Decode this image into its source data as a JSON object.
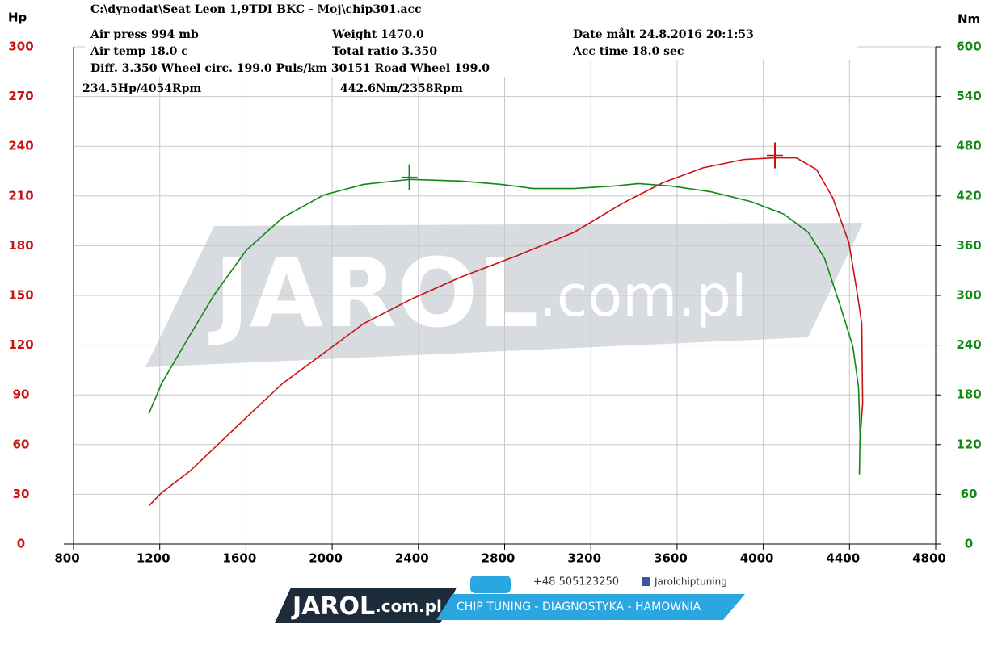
{
  "chart_data": {
    "type": "line",
    "title": "C:\\dynodat\\Seat Leon 1,9TDI BKC - Moj\\chip301.acc",
    "info_rows": [
      [
        "Air press  994 mb",
        "Weight  1470.0",
        "Date målt 24.8.2016 20:1:53"
      ],
      [
        "Air temp  18.0 c",
        "Total ratio 3.350",
        "Acc time  18.0 sec"
      ],
      [
        "Diff.    3.350  Wheel circ. 199.0  Puls/km  30151  Road Wheel 199.0"
      ]
    ],
    "ylabel": "Hp",
    "y2label": "Nm",
    "xlim": [
      800,
      4800
    ],
    "xticks": [
      800,
      1200,
      1600,
      2000,
      2400,
      2800,
      3200,
      3600,
      4000,
      4400,
      4800
    ],
    "ylim": [
      0,
      300
    ],
    "yticks": [
      0,
      30,
      60,
      90,
      120,
      150,
      180,
      210,
      240,
      270,
      300
    ],
    "y2lim": [
      0,
      600
    ],
    "y2ticks": [
      0,
      60,
      120,
      180,
      240,
      300,
      360,
      420,
      480,
      540,
      600
    ],
    "grid": true,
    "series": [
      {
        "color": "#cc1111",
        "axis": "y",
        "x": [
          1149,
          1209,
          1340,
          1453,
          1603,
          1771,
          1959,
          2146,
          2371,
          2596,
          2858,
          3121,
          3346,
          3534,
          3721,
          3909,
          4052,
          4153,
          4247,
          4322,
          4397,
          4434,
          4457,
          4461,
          4453
        ],
        "values": [
          22.9,
          31,
          44,
          58,
          76.5,
          97,
          115,
          133,
          148,
          161,
          174,
          188,
          205.5,
          218,
          227,
          232,
          233,
          233,
          226,
          209,
          182,
          153,
          133,
          85,
          70
        ],
        "peak": {
          "x": 4054,
          "y": 234.5,
          "label": "234.5Hp/4054Rpm"
        }
      },
      {
        "color": "#118811",
        "axis": "y2",
        "x": [
          1149,
          1209,
          1340,
          1453,
          1603,
          1771,
          1959,
          2146,
          2360,
          2596,
          2783,
          2933,
          3121,
          3309,
          3421,
          3571,
          3759,
          3946,
          4096,
          4209,
          4284,
          4359,
          4416,
          4442,
          4449,
          4446
        ],
        "values": [
          157,
          194,
          252,
          301,
          355,
          394,
          421,
          434,
          440,
          438,
          434,
          429,
          429,
          432,
          435,
          432,
          425,
          413,
          398,
          376,
          345,
          286,
          238,
          189,
          131,
          84
        ],
        "peak": {
          "x": 2358,
          "y": 442.6,
          "label": "442.6Nm/2358Rpm"
        }
      }
    ],
    "watermark": {
      "brand": "JAROL",
      "domain": ".com.pl"
    },
    "footer": {
      "brand": "JAROL",
      "domain": ".com.pl",
      "phone": "+48 505123250",
      "facebook": "Jarolchiptuning",
      "tagline": "CHIP TUNING - DIAGNOSTYKA - HAMOWNIA"
    }
  }
}
